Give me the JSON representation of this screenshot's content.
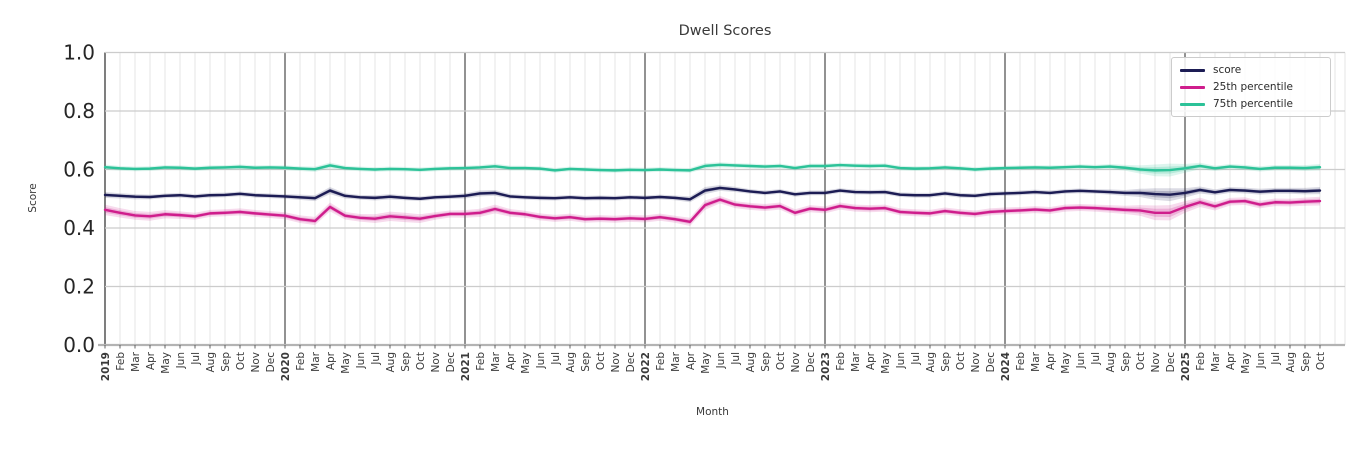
{
  "title": "Dwell Scores",
  "axes": {
    "x_label": "Month",
    "y_label": "Score"
  },
  "legend": {
    "items": [
      {
        "label": "score"
      },
      {
        "label": "25th percentile"
      },
      {
        "label": "75th percentile"
      }
    ]
  },
  "chart_data": {
    "type": "line",
    "title": "Dwell Scores",
    "xlabel": "Month",
    "ylabel": "Score",
    "ylim": [
      0.0,
      1.0
    ],
    "yticks": [
      0.0,
      0.2,
      0.4,
      0.6,
      0.8,
      1.0
    ],
    "grid": true,
    "legend_position": "upper right",
    "axis_color": "#3a3a3a",
    "grid_color_minor": "#e4e4e4",
    "grid_color_major": "#cccccc",
    "baseline_color": "#b3b3b3",
    "tick_label_color": "#262626",
    "categories": [
      "2019",
      "Feb",
      "Mar",
      "Apr",
      "May",
      "Jun",
      "Jul",
      "Aug",
      "Sep",
      "Oct",
      "Nov",
      "Dec",
      "2020",
      "Feb",
      "Mar",
      "Apr",
      "May",
      "Jun",
      "Jul",
      "Aug",
      "Sep",
      "Oct",
      "Nov",
      "Dec",
      "2021",
      "Feb",
      "Mar",
      "Apr",
      "May",
      "Jun",
      "Jul",
      "Aug",
      "Sep",
      "Oct",
      "Nov",
      "Dec",
      "2022",
      "Feb",
      "Mar",
      "Apr",
      "May",
      "Jun",
      "Jul",
      "Aug",
      "Sep",
      "Oct",
      "Nov",
      "Dec",
      "2023",
      "Feb",
      "Mar",
      "Apr",
      "May",
      "Jun",
      "Jul",
      "Aug",
      "Sep",
      "Oct",
      "Nov",
      "Dec",
      "2024",
      "Feb",
      "Mar",
      "Apr",
      "May",
      "Jun",
      "Jul",
      "Aug",
      "Sep",
      "Oct",
      "Nov",
      "Dec",
      "2025",
      "Feb",
      "Mar",
      "Apr",
      "May",
      "Jun",
      "Jul",
      "Aug",
      "Sep",
      "Oct"
    ],
    "series": [
      {
        "name": "score",
        "color": "#1c1c54",
        "values": [
          0.513,
          0.51,
          0.507,
          0.506,
          0.51,
          0.512,
          0.508,
          0.512,
          0.513,
          0.517,
          0.512,
          0.51,
          0.508,
          0.505,
          0.502,
          0.528,
          0.51,
          0.505,
          0.503,
          0.507,
          0.503,
          0.5,
          0.505,
          0.507,
          0.51,
          0.518,
          0.52,
          0.508,
          0.505,
          0.503,
          0.502,
          0.505,
          0.502,
          0.503,
          0.502,
          0.505,
          0.503,
          0.506,
          0.503,
          0.498,
          0.528,
          0.537,
          0.532,
          0.525,
          0.52,
          0.525,
          0.515,
          0.52,
          0.52,
          0.528,
          0.523,
          0.522,
          0.523,
          0.514,
          0.512,
          0.512,
          0.518,
          0.512,
          0.51,
          0.516,
          0.518,
          0.52,
          0.523,
          0.52,
          0.525,
          0.527,
          0.525,
          0.523,
          0.52,
          0.52,
          0.516,
          0.514,
          0.52,
          0.53,
          0.522,
          0.53,
          0.528,
          0.524,
          0.527,
          0.527,
          0.526,
          0.528
        ],
        "ci_halfwidth": [
          0.01,
          0.009,
          0.009,
          0.008,
          0.008,
          0.008,
          0.008,
          0.008,
          0.008,
          0.008,
          0.008,
          0.008,
          0.008,
          0.009,
          0.01,
          0.012,
          0.009,
          0.008,
          0.009,
          0.009,
          0.008,
          0.008,
          0.008,
          0.008,
          0.009,
          0.01,
          0.01,
          0.008,
          0.008,
          0.008,
          0.008,
          0.008,
          0.008,
          0.008,
          0.008,
          0.008,
          0.008,
          0.008,
          0.008,
          0.01,
          0.012,
          0.01,
          0.009,
          0.008,
          0.008,
          0.008,
          0.008,
          0.008,
          0.008,
          0.008,
          0.008,
          0.008,
          0.008,
          0.008,
          0.008,
          0.008,
          0.008,
          0.008,
          0.008,
          0.008,
          0.008,
          0.008,
          0.008,
          0.008,
          0.008,
          0.008,
          0.008,
          0.009,
          0.01,
          0.014,
          0.02,
          0.022,
          0.016,
          0.012,
          0.01,
          0.01,
          0.01,
          0.01,
          0.01,
          0.01,
          0.011,
          0.012
        ]
      },
      {
        "name": "25th percentile",
        "color": "#cf1d8c",
        "values": [
          0.462,
          0.452,
          0.443,
          0.44,
          0.447,
          0.444,
          0.44,
          0.45,
          0.452,
          0.455,
          0.45,
          0.446,
          0.442,
          0.43,
          0.424,
          0.472,
          0.442,
          0.435,
          0.432,
          0.44,
          0.436,
          0.432,
          0.441,
          0.448,
          0.448,
          0.452,
          0.465,
          0.452,
          0.447,
          0.438,
          0.433,
          0.437,
          0.43,
          0.432,
          0.43,
          0.433,
          0.431,
          0.437,
          0.43,
          0.421,
          0.478,
          0.497,
          0.48,
          0.474,
          0.47,
          0.475,
          0.452,
          0.466,
          0.462,
          0.475,
          0.468,
          0.466,
          0.468,
          0.455,
          0.452,
          0.45,
          0.458,
          0.452,
          0.448,
          0.455,
          0.458,
          0.46,
          0.463,
          0.46,
          0.468,
          0.47,
          0.468,
          0.465,
          0.462,
          0.46,
          0.452,
          0.452,
          0.472,
          0.488,
          0.474,
          0.49,
          0.492,
          0.48,
          0.488,
          0.487,
          0.49,
          0.492
        ],
        "ci_halfwidth": [
          0.018,
          0.016,
          0.015,
          0.015,
          0.014,
          0.013,
          0.012,
          0.012,
          0.012,
          0.012,
          0.012,
          0.012,
          0.012,
          0.013,
          0.014,
          0.015,
          0.013,
          0.013,
          0.015,
          0.016,
          0.016,
          0.015,
          0.013,
          0.012,
          0.013,
          0.014,
          0.015,
          0.013,
          0.012,
          0.012,
          0.012,
          0.012,
          0.012,
          0.012,
          0.012,
          0.012,
          0.012,
          0.012,
          0.012,
          0.014,
          0.016,
          0.013,
          0.012,
          0.012,
          0.012,
          0.012,
          0.012,
          0.012,
          0.012,
          0.012,
          0.012,
          0.012,
          0.012,
          0.012,
          0.012,
          0.012,
          0.012,
          0.012,
          0.012,
          0.012,
          0.012,
          0.012,
          0.012,
          0.012,
          0.012,
          0.012,
          0.012,
          0.013,
          0.014,
          0.018,
          0.025,
          0.026,
          0.02,
          0.016,
          0.014,
          0.013,
          0.013,
          0.013,
          0.013,
          0.013,
          0.014,
          0.015
        ]
      },
      {
        "name": "75th percentile",
        "color": "#2cc298",
        "values": [
          0.608,
          0.604,
          0.602,
          0.603,
          0.607,
          0.606,
          0.603,
          0.606,
          0.607,
          0.609,
          0.606,
          0.607,
          0.606,
          0.603,
          0.601,
          0.614,
          0.605,
          0.602,
          0.6,
          0.602,
          0.601,
          0.599,
          0.602,
          0.604,
          0.605,
          0.607,
          0.611,
          0.605,
          0.605,
          0.603,
          0.597,
          0.602,
          0.6,
          0.598,
          0.597,
          0.599,
          0.598,
          0.6,
          0.598,
          0.597,
          0.612,
          0.616,
          0.614,
          0.612,
          0.61,
          0.612,
          0.605,
          0.612,
          0.612,
          0.615,
          0.613,
          0.612,
          0.613,
          0.605,
          0.603,
          0.604,
          0.607,
          0.604,
          0.6,
          0.603,
          0.605,
          0.606,
          0.607,
          0.606,
          0.608,
          0.61,
          0.608,
          0.61,
          0.606,
          0.6,
          0.597,
          0.598,
          0.604,
          0.612,
          0.604,
          0.61,
          0.607,
          0.602,
          0.606,
          0.606,
          0.605,
          0.608
        ],
        "ci_halfwidth": [
          0.009,
          0.008,
          0.008,
          0.008,
          0.008,
          0.008,
          0.008,
          0.008,
          0.008,
          0.008,
          0.008,
          0.008,
          0.008,
          0.008,
          0.009,
          0.01,
          0.008,
          0.008,
          0.008,
          0.008,
          0.008,
          0.008,
          0.008,
          0.008,
          0.008,
          0.008,
          0.009,
          0.008,
          0.008,
          0.008,
          0.008,
          0.008,
          0.008,
          0.008,
          0.008,
          0.008,
          0.008,
          0.008,
          0.008,
          0.008,
          0.01,
          0.009,
          0.008,
          0.008,
          0.008,
          0.008,
          0.008,
          0.008,
          0.008,
          0.008,
          0.008,
          0.008,
          0.008,
          0.008,
          0.008,
          0.008,
          0.008,
          0.008,
          0.008,
          0.008,
          0.008,
          0.008,
          0.008,
          0.008,
          0.008,
          0.008,
          0.008,
          0.009,
          0.01,
          0.014,
          0.02,
          0.022,
          0.015,
          0.011,
          0.009,
          0.009,
          0.009,
          0.009,
          0.009,
          0.009,
          0.01,
          0.011
        ]
      }
    ]
  }
}
